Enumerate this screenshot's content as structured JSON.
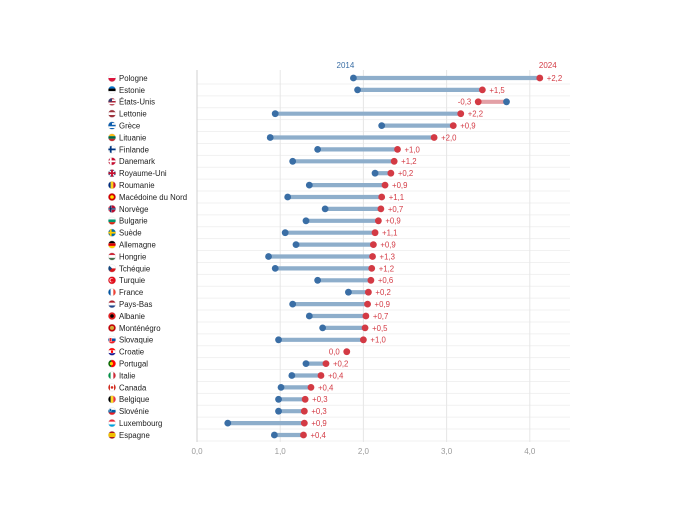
{
  "chart_data": {
    "type": "dumbbell",
    "series": [
      {
        "name": "2014",
        "color": "#3a6ea5",
        "label_color": "#3a6ea5"
      },
      {
        "name": "2024",
        "color": "#d33a44",
        "label_color": "#d33a44"
      }
    ],
    "bar_color_increase": "#8eaecb",
    "bar_color_decrease": "#e3a0a6",
    "xlim": [
      0,
      4.5
    ],
    "xticks": [
      {
        "value": 0,
        "label": "0,0"
      },
      {
        "value": 1,
        "label": "1,0"
      },
      {
        "value": 2,
        "label": "2,0"
      },
      {
        "value": 3,
        "label": "3,0"
      },
      {
        "value": 4,
        "label": "4,0"
      }
    ],
    "grid": "vertical",
    "rows": [
      {
        "country": "Pologne",
        "flag": "poland-flag",
        "v2014": 1.88,
        "v2024": 4.12,
        "change": "+2,2"
      },
      {
        "country": "Estonie",
        "flag": "estonia-flag",
        "v2014": 1.93,
        "v2024": 3.43,
        "change": "+1,5"
      },
      {
        "country": "États-Unis",
        "flag": "usa-flag",
        "v2014": 3.72,
        "v2024": 3.38,
        "change": "-0,3"
      },
      {
        "country": "Lettonie",
        "flag": "latvia-flag",
        "v2014": 0.94,
        "v2024": 3.17,
        "change": "+2,2"
      },
      {
        "country": "Grèce",
        "flag": "greece-flag",
        "v2014": 2.22,
        "v2024": 3.08,
        "change": "+0,9"
      },
      {
        "country": "Lituanie",
        "flag": "lithuania-flag",
        "v2014": 0.88,
        "v2024": 2.85,
        "change": "+2,0"
      },
      {
        "country": "Finlande",
        "flag": "finland-flag",
        "v2014": 1.45,
        "v2024": 2.41,
        "change": "+1,0"
      },
      {
        "country": "Danemark",
        "flag": "denmark-flag",
        "v2014": 1.15,
        "v2024": 2.37,
        "change": "+1,2"
      },
      {
        "country": "Royaume-Uni",
        "flag": "uk-flag",
        "v2014": 2.14,
        "v2024": 2.33,
        "change": "+0,2"
      },
      {
        "country": "Roumanie",
        "flag": "romania-flag",
        "v2014": 1.35,
        "v2024": 2.26,
        "change": "+0,9"
      },
      {
        "country": "Macédoine du Nord",
        "flag": "north-macedonia-flag",
        "v2014": 1.09,
        "v2024": 2.22,
        "change": "+1,1"
      },
      {
        "country": "Norvège",
        "flag": "norway-flag",
        "v2014": 1.54,
        "v2024": 2.21,
        "change": "+0,7"
      },
      {
        "country": "Bulgarie",
        "flag": "bulgaria-flag",
        "v2014": 1.31,
        "v2024": 2.18,
        "change": "+0,9"
      },
      {
        "country": "Suède",
        "flag": "sweden-flag",
        "v2014": 1.06,
        "v2024": 2.14,
        "change": "+1,1"
      },
      {
        "country": "Allemagne",
        "flag": "germany-flag",
        "v2014": 1.19,
        "v2024": 2.12,
        "change": "+0,9"
      },
      {
        "country": "Hongrie",
        "flag": "hungary-flag",
        "v2014": 0.86,
        "v2024": 2.11,
        "change": "+1,3"
      },
      {
        "country": "Tchéquie",
        "flag": "czechia-flag",
        "v2014": 0.94,
        "v2024": 2.1,
        "change": "+1,2"
      },
      {
        "country": "Turquie",
        "flag": "turkey-flag",
        "v2014": 1.45,
        "v2024": 2.09,
        "change": "+0,6"
      },
      {
        "country": "France",
        "flag": "france-flag",
        "v2014": 1.82,
        "v2024": 2.06,
        "change": "+0,2"
      },
      {
        "country": "Pays-Bas",
        "flag": "netherlands-flag",
        "v2014": 1.15,
        "v2024": 2.05,
        "change": "+0,9"
      },
      {
        "country": "Albanie",
        "flag": "albania-flag",
        "v2014": 1.35,
        "v2024": 2.03,
        "change": "+0,7"
      },
      {
        "country": "Monténégro",
        "flag": "montenegro-flag",
        "v2014": 1.51,
        "v2024": 2.02,
        "change": "+0,5"
      },
      {
        "country": "Slovaquie",
        "flag": "slovakia-flag",
        "v2014": 0.98,
        "v2024": 2.0,
        "change": "+1,0"
      },
      {
        "country": "Croatie",
        "flag": "croatia-flag",
        "v2014": null,
        "v2024": 1.8,
        "change": "0,0"
      },
      {
        "country": "Portugal",
        "flag": "portugal-flag",
        "v2014": 1.31,
        "v2024": 1.55,
        "change": "+0,2"
      },
      {
        "country": "Italie",
        "flag": "italy-flag",
        "v2014": 1.14,
        "v2024": 1.49,
        "change": "+0,4"
      },
      {
        "country": "Canada",
        "flag": "canada-flag",
        "v2014": 1.01,
        "v2024": 1.37,
        "change": "+0,4"
      },
      {
        "country": "Belgique",
        "flag": "belgium-flag",
        "v2014": 0.98,
        "v2024": 1.3,
        "change": "+0,3"
      },
      {
        "country": "Slovénie",
        "flag": "slovenia-flag",
        "v2014": 0.98,
        "v2024": 1.29,
        "change": "+0,3"
      },
      {
        "country": "Luxembourg",
        "flag": "luxembourg-flag",
        "v2014": 0.37,
        "v2024": 1.29,
        "change": "+0,9"
      },
      {
        "country": "Espagne",
        "flag": "spain-flag",
        "v2014": 0.93,
        "v2024": 1.28,
        "change": "+0,4"
      }
    ]
  }
}
